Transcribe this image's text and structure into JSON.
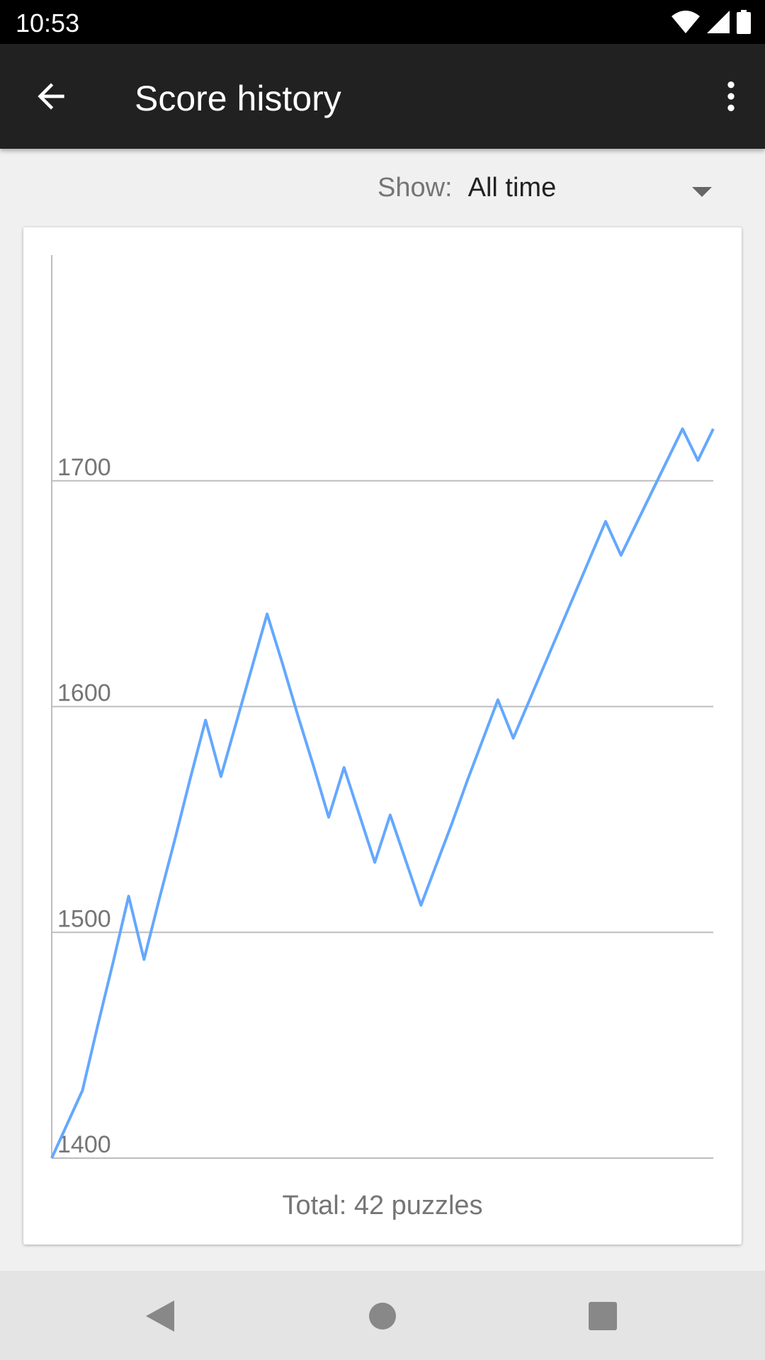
{
  "status_bar": {
    "time": "10:53",
    "icons": [
      "wifi-icon",
      "signal-icon",
      "battery-icon"
    ]
  },
  "toolbar": {
    "title": "Score history",
    "back_icon": "arrow-back-icon",
    "menu_icon": "more-vert-icon"
  },
  "filter": {
    "label": "Show:",
    "value": "All time"
  },
  "footer": {
    "total": "Total: 42 puzzles"
  },
  "colors": {
    "line": "#64a8ff",
    "grid": "#bdbdbd",
    "toolbar": "#212121"
  },
  "chart_data": {
    "type": "line",
    "title": "",
    "xlabel": "",
    "ylabel": "",
    "ylim": [
      1400,
      1800
    ],
    "yticks": [
      1400,
      1500,
      1600,
      1700
    ],
    "grid": true,
    "x": [
      0,
      1,
      2,
      3,
      4,
      5,
      6,
      7,
      8,
      9,
      10,
      11,
      12,
      13,
      14,
      15,
      16,
      17,
      18,
      19,
      20,
      21,
      22,
      23,
      24,
      25,
      26,
      27,
      28,
      29,
      30,
      31,
      32,
      33,
      34,
      35,
      36,
      37,
      38,
      39,
      40,
      41,
      42,
      43
    ],
    "values": [
      1400,
      1415,
      1430,
      1459,
      1487,
      1516,
      1488,
      1515,
      1541,
      1568,
      1594,
      1569,
      1593,
      1617,
      1641,
      1619,
      1596,
      1574,
      1551,
      1573,
      1552,
      1531,
      1552,
      1532,
      1512,
      1530,
      1548,
      1567,
      1585,
      1603,
      1586,
      1602,
      1618,
      1634,
      1650,
      1666,
      1682,
      1667,
      1681,
      1695,
      1709,
      1723,
      1709,
      1723
    ]
  }
}
